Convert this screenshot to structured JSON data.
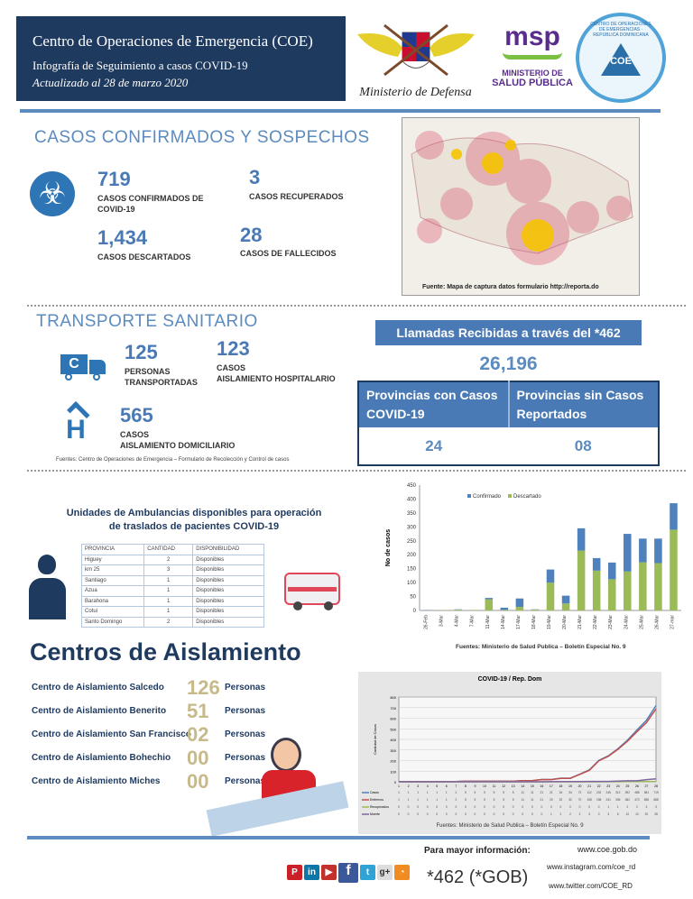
{
  "header": {
    "title": "Centro de Operaciones de Emergencia (COE)",
    "subtitle": "Infografía de Seguimiento a casos COVID-19",
    "updated": "Actualizado al  28  de marzo 2020"
  },
  "logos": {
    "defensa": "Ministerio de Defensa",
    "msp_top": "MINISTERIO DE",
    "msp_bottom": "SALUD PÚBLICA",
    "msp_mark": "msp",
    "coe": "COE",
    "coe_ring": "CENTRO DE OPERACIONES DE EMERGENCIAS · REPUBLICA DOMINICANA"
  },
  "cases": {
    "title": "CASOS CONFIRMADOS Y SOSPECHOS",
    "confirmed": "719",
    "confirmed_label": "CASOS CONFIRMADOS DE COVID-19",
    "recovered": "3",
    "recovered_label": "CASOS RECUPERADOS",
    "discarded": "1,434",
    "discarded_label": "CASOS DESCARTADOS",
    "deaths": "28",
    "deaths_label": "CASOS DE FALLECIDOS",
    "map_source": "Fuente: Mapa de captura datos formulario http://reporta.do"
  },
  "transport": {
    "title": "TRANSPORTE SANITARIO",
    "persons": "125",
    "persons_label": "PERSONAS TRANSPORTADAS",
    "hosp": "123",
    "hosp_label1": "CASOS",
    "hosp_label2": "AISLAMIENTO HOSPITALARIO",
    "home": "565",
    "home_label1": "CASOS",
    "home_label2": "AISLAMIENTO DOMICILIARIO",
    "source": "Fuentes: Centro de Operaciones de Emergencia – Formulario de Recolección y Control de casos"
  },
  "calls": {
    "title": "Llamadas Recibidas a través del *462",
    "count": "26,196",
    "col1": "Provincias con Casos COVID-19",
    "col2": "Provincias sin Casos Reportados",
    "val1": "24",
    "val2": "08"
  },
  "ambulances": {
    "title": "Unidades de Ambulancias disponibles para operación de traslados de pacientes COVID-19",
    "headers": [
      "PROVINCIA",
      "CANTIDAD",
      "DISPONIBILIDAD"
    ],
    "rows": [
      [
        "Higuey",
        "2",
        "Disponibles"
      ],
      [
        "km 25",
        "3",
        "Disponibles"
      ],
      [
        "Santiago",
        "1",
        "Disponibles"
      ],
      [
        "Azua",
        "1",
        "Disponibles"
      ],
      [
        "Barahona",
        "1",
        "Disponibles"
      ],
      [
        "Cotui",
        "1",
        "Disponibles"
      ],
      [
        "Santo Domingo",
        "2",
        "Disponibles"
      ]
    ]
  },
  "isolation": {
    "title": "Centros de Aislamiento",
    "unit": "Personas",
    "centers": [
      {
        "name": "Centro de Aislamiento Salcedo",
        "count": "126"
      },
      {
        "name": "Centro de Aislamiento Benerito",
        "count": "51"
      },
      {
        "name": "Centro de Aislamiento San Francisco",
        "count": "02"
      },
      {
        "name": "Centro de Aislamiento Bohechio",
        "count": "00"
      },
      {
        "name": "Centro de Aislamiento Miches",
        "count": "00"
      }
    ]
  },
  "footer": {
    "more_info": "Para mayor  información:",
    "phone": "*462 (*GOB)",
    "web": "www.coe.gob.do",
    "instagram": "www.instagram.com/coe_rd",
    "twitter": "www.twitter.com/COE_RD"
  },
  "colors": {
    "navy": "#1f3a5f",
    "accent": "#5b8bbf",
    "confirmado": "#4f81bd",
    "descartado": "#9bbb59"
  },
  "chart_data": [
    {
      "type": "bar",
      "stacked": true,
      "title": "",
      "ylabel": "No de casos",
      "xlabel": "",
      "ylim": [
        0,
        450
      ],
      "yticks": [
        0,
        50,
        100,
        150,
        200,
        250,
        300,
        350,
        400,
        450
      ],
      "legend": "top-left",
      "categories": [
        "26-Feb",
        "3-Mar",
        "4-Mar",
        "7-Mar",
        "11-Mar",
        "14-Mar",
        "17-Mar",
        "18-Mar",
        "19-Mar",
        "20-Mar",
        "21-Mar",
        "22-Mar",
        "23-Mar",
        "24-Mar",
        "25-Mar",
        "26-Mar",
        "27-mar"
      ],
      "series": [
        {
          "name": "Confirmado",
          "values": [
            1,
            0,
            1,
            0,
            5,
            8,
            30,
            1,
            47,
            28,
            80,
            45,
            60,
            135,
            85,
            88,
            95
          ]
        },
        {
          "name": "Descartado",
          "values": [
            0,
            1,
            3,
            2,
            40,
            2,
            13,
            3,
            100,
            25,
            215,
            143,
            112,
            140,
            173,
            170,
            290
          ]
        }
      ],
      "source": "Fuentes: Ministerio de Salud Publica – Boletín Especial No. 9"
    },
    {
      "type": "line",
      "title": "COVID-19 / Rep. Dom",
      "ylabel": "Cantidad de Casos",
      "ylim": [
        0,
        800
      ],
      "yticks": [
        0,
        100,
        200,
        300,
        400,
        500,
        600,
        700,
        800
      ],
      "x": [
        1,
        2,
        3,
        4,
        5,
        6,
        7,
        8,
        9,
        10,
        11,
        12,
        13,
        14,
        15,
        16,
        17,
        18,
        19,
        20,
        21,
        22,
        23,
        24,
        25,
        26,
        27,
        28
      ],
      "series": [
        {
          "name": "Casos",
          "color": "#4f81bd",
          "values": [
            1,
            1,
            1,
            1,
            1,
            1,
            2,
            5,
            5,
            5,
            5,
            5,
            5,
            11,
            11,
            21,
            21,
            34,
            34,
            72,
            112,
            202,
            245,
            312,
            392,
            488,
            581,
            719
          ]
        },
        {
          "name": "Enfermos",
          "color": "#c0504d",
          "values": [
            1,
            1,
            1,
            1,
            1,
            1,
            2,
            5,
            5,
            5,
            5,
            5,
            5,
            11,
            11,
            21,
            20,
            32,
            32,
            70,
            108,
            198,
            241,
            306,
            382,
            473,
            558,
            688
          ]
        },
        {
          "name": "Recuperados",
          "color": "#9bbb59",
          "values": [
            0,
            0,
            0,
            0,
            0,
            0,
            0,
            0,
            0,
            0,
            0,
            0,
            0,
            0,
            0,
            0,
            0,
            0,
            0,
            0,
            0,
            0,
            1,
            1,
            2,
            2,
            3,
            3
          ]
        },
        {
          "name": "Muerte",
          "color": "#8064a2",
          "values": [
            0,
            0,
            0,
            0,
            0,
            0,
            0,
            0,
            0,
            0,
            0,
            0,
            0,
            0,
            0,
            0,
            1,
            2,
            2,
            2,
            3,
            3,
            3,
            6,
            10,
            10,
            20,
            28
          ]
        }
      ],
      "source": "Fuentes: Ministerio de Salud Publica – Boletín Especial No. 9"
    }
  ]
}
